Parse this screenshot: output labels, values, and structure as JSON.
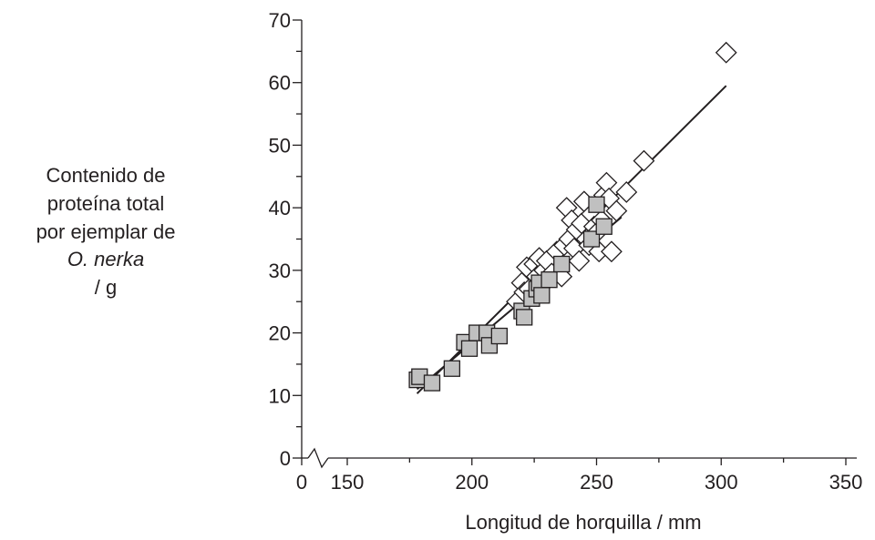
{
  "chart_data": {
    "type": "scatter",
    "title": "",
    "ylabel": {
      "line1": "Contenido de",
      "line2": "proteína total",
      "line3": "por ejemplar de",
      "species": "O. nerka",
      "unit": "/ g"
    },
    "xlabel": "Longitud de horquilla / mm",
    "xlim": [
      150,
      350
    ],
    "ylim": [
      0,
      70
    ],
    "x_ticks": [
      "0",
      "150",
      "200",
      "250",
      "300",
      "350"
    ],
    "y_ticks": [
      "0",
      "10",
      "20",
      "30",
      "40",
      "50",
      "60",
      "70"
    ],
    "x_axis_break": true,
    "grid": false,
    "legend": "none",
    "series": [
      {
        "marker": "diamond-open",
        "color": "#231f20",
        "fill": "#ffffff",
        "points": [
          [
            218,
            25.0
          ],
          [
            220,
            28.0
          ],
          [
            221,
            26.5
          ],
          [
            222,
            30.5
          ],
          [
            223,
            27.0
          ],
          [
            225,
            31.0
          ],
          [
            226,
            29.0
          ],
          [
            227,
            32.0
          ],
          [
            228,
            27.5
          ],
          [
            229,
            30.0
          ],
          [
            230,
            31.5
          ],
          [
            232,
            29.5
          ],
          [
            234,
            33.0
          ],
          [
            236,
            29.0
          ],
          [
            237,
            34.0
          ],
          [
            238,
            40.0
          ],
          [
            239,
            35.0
          ],
          [
            240,
            38.0
          ],
          [
            241,
            33.5
          ],
          [
            242,
            36.5
          ],
          [
            243,
            31.5
          ],
          [
            244,
            37.5
          ],
          [
            245,
            41.0
          ],
          [
            246,
            35.0
          ],
          [
            247,
            34.0
          ],
          [
            248,
            39.0
          ],
          [
            249,
            37.0
          ],
          [
            250,
            36.0
          ],
          [
            251,
            33.0
          ],
          [
            252,
            38.0
          ],
          [
            253,
            42.0
          ],
          [
            254,
            44.0
          ],
          [
            255,
            41.5
          ],
          [
            256,
            33.0
          ],
          [
            258,
            39.5
          ],
          [
            262,
            42.5
          ],
          [
            269,
            47.5
          ],
          [
            302,
            64.8
          ]
        ]
      },
      {
        "marker": "square-filled",
        "color": "#231f20",
        "fill": "#c0c0c0",
        "points": [
          [
            178,
            12.5
          ],
          [
            179,
            13.0
          ],
          [
            184,
            12.0
          ],
          [
            192,
            14.3
          ],
          [
            197,
            18.5
          ],
          [
            199,
            17.5
          ],
          [
            202,
            20.0
          ],
          [
            206,
            20.0
          ],
          [
            207,
            18.0
          ],
          [
            211,
            19.5
          ],
          [
            220,
            23.5
          ],
          [
            221,
            22.5
          ],
          [
            224,
            25.5
          ],
          [
            226,
            27.0
          ],
          [
            227,
            28.0
          ],
          [
            228,
            26.0
          ],
          [
            231,
            28.5
          ],
          [
            236,
            31.0
          ],
          [
            248,
            35.0
          ],
          [
            250,
            40.5
          ],
          [
            253,
            37.0
          ]
        ]
      }
    ],
    "trend_lines": [
      {
        "color": "#231f20",
        "x": [
          178,
          302
        ],
        "y": [
          10.3,
          59.5
        ]
      },
      {
        "color": "#231f20",
        "x": [
          178,
          260
        ],
        "y": [
          11.0,
          38.5
        ]
      }
    ]
  }
}
